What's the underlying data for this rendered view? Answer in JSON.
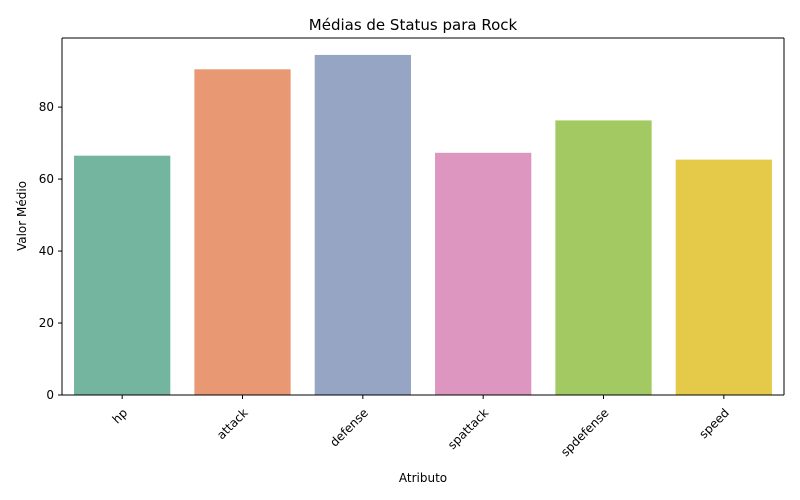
{
  "chart_data": {
    "type": "bar",
    "title": "Médias de Status para Rock",
    "xlabel": "Atributo",
    "ylabel": "Valor Médio",
    "categories": [
      "hp",
      "attack",
      "defense",
      "spattack",
      "spdefense",
      "speed"
    ],
    "values": [
      66.5,
      90.5,
      94.5,
      67.3,
      76.3,
      65.4
    ],
    "colors": [
      "#73b59f",
      "#e99874",
      "#95a5c3",
      "#dc96c0",
      "#a3c962",
      "#e4ca48"
    ],
    "yticks": [
      0,
      20,
      40,
      60,
      80
    ],
    "ylim": [
      0,
      99.2
    ],
    "grid": false,
    "legend": false
  }
}
